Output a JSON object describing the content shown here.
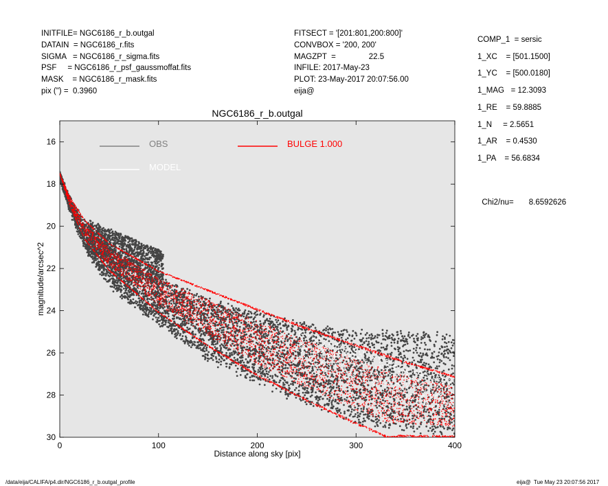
{
  "header_left": [
    {
      "label": "INITFILE= ",
      "value": "NGC6186_r_b.outgal"
    },
    {
      "label": "DATAIN  = ",
      "value": "NGC6186_r.fits"
    },
    {
      "label": "SIGMA   = ",
      "value": "NGC6186_r_sigma.fits"
    },
    {
      "label": "PSF     = ",
      "value": "NGC6186_r_psf_gaussmoffat.fits"
    },
    {
      "label": "MASK    = ",
      "value": "NGC6186_r_mask.fits"
    },
    {
      "label": "pix (\") =  ",
      "value": "0.3960"
    }
  ],
  "header_mid": [
    "FITSECT = '[201:801,200:800]'",
    "CONVBOX = '200, 200'",
    "MAGZPT  =               22.5",
    "INFILE: 2017-May-23",
    "PLOT: 23-May-2017 20:07:56.00",
    "eija@"
  ],
  "header_right": [
    "COMP_1  = sersic",
    "1_XC    = [501.1500]",
    "1_YC    = [500.0180]",
    "1_MAG   = 12.3093",
    "1_RE    = 59.8885",
    "1_N     = 2.5651",
    "1_AR    = 0.4530",
    "1_PA    = 56.6834"
  ],
  "chi2": {
    "label": "Chi2/nu=",
    "value": "8.6592626"
  },
  "footer": {
    "path": "/data/eija/CALIFA/p4.dir/NGC6186_r_b.outgal_profile",
    "stamp": "eija@  Tue May 23 20:07:56 2017"
  },
  "colors": {
    "obs": "#444444",
    "model": "#ffffff",
    "bulge": "#ff0000",
    "panel": "#e6e6e6",
    "legend_obs": "#808080"
  },
  "chart_data": {
    "type": "scatter",
    "title": "NGC6186_r_b.outgal",
    "xlabel": "Distance along sky [pix]",
    "ylabel": "magnitude/arcsec^2",
    "xlim": [
      0,
      400
    ],
    "ylim": [
      30,
      15
    ],
    "y_inverted": true,
    "xticks": [
      "0",
      "100",
      "200",
      "300",
      "400"
    ],
    "yticks": [
      "16",
      "18",
      "20",
      "22",
      "24",
      "26",
      "28",
      "30"
    ],
    "grid": false,
    "legend": [
      {
        "name": "OBS",
        "color": "#808080"
      },
      {
        "name": "MODEL",
        "color": "#ffffff"
      },
      {
        "name": "BULGE  1.000",
        "color": "#ff0000"
      }
    ],
    "series": [
      {
        "name": "OBS",
        "kind": "points",
        "color": "#444444",
        "bright_envelope": {
          "x": [
            0,
            10,
            25,
            50,
            100,
            150,
            200,
            250,
            300,
            400
          ],
          "y": [
            17.6,
            18.7,
            19.8,
            21.0,
            22.5,
            23.5,
            24.2,
            24.7,
            25.0,
            25.1
          ]
        },
        "faint_envelope": {
          "x": [
            0,
            10,
            25,
            50,
            100,
            150,
            200,
            250,
            300,
            400
          ],
          "y": [
            17.6,
            19.2,
            21.0,
            22.8,
            24.6,
            26.3,
            27.4,
            28.4,
            29.3,
            30.0
          ]
        },
        "clump": {
          "x": [
            30,
            105
          ],
          "y": [
            20.0,
            23.0
          ]
        }
      },
      {
        "name": "BULGE  1.000",
        "kind": "points",
        "color": "#ff0000",
        "bright_envelope": {
          "x": [
            0,
            10,
            25,
            50,
            100,
            150,
            200,
            250,
            300,
            350,
            400
          ],
          "y": [
            17.5,
            18.6,
            19.7,
            20.8,
            22.1,
            23.0,
            23.9,
            24.8,
            25.6,
            26.4,
            27.1
          ]
        },
        "faint_envelope": {
          "x": [
            0,
            10,
            25,
            50,
            100,
            150,
            200,
            250,
            300,
            330
          ],
          "y": [
            17.5,
            19.0,
            20.6,
            22.1,
            24.1,
            25.7,
            27.1,
            28.3,
            29.4,
            30.0
          ]
        }
      }
    ]
  }
}
